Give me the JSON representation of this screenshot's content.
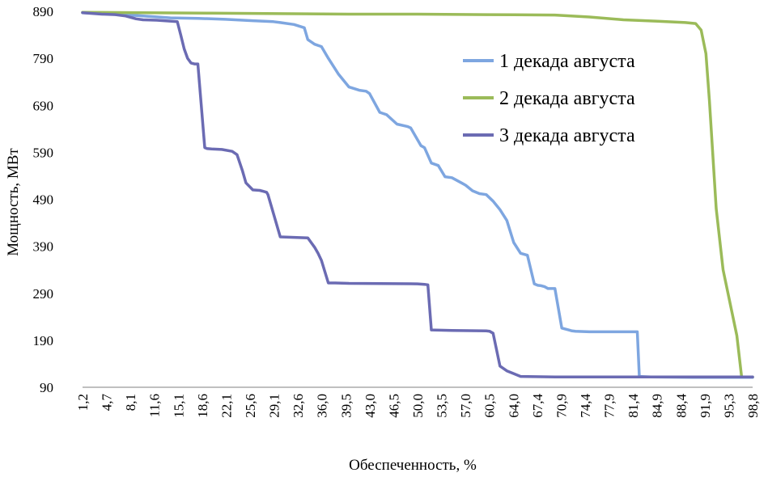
{
  "chart_data": {
    "type": "line",
    "xlabel": "Обеспеченность, %",
    "ylabel": "Мощность, МВт",
    "ylim": [
      90,
      890
    ],
    "yticks": [
      "890",
      "790",
      "690",
      "590",
      "490",
      "390",
      "290",
      "190",
      "90"
    ],
    "x_tick_labels": [
      "1,2",
      "4,7",
      "8,1",
      "11,6",
      "15,1",
      "18,6",
      "22,1",
      "25,6",
      "29,1",
      "32,6",
      "36,0",
      "39,5",
      "43,0",
      "46,5",
      "50,0",
      "53,5",
      "57,0",
      "60,5",
      "64,0",
      "67,4",
      "70,9",
      "74,4",
      "77,9",
      "81,4",
      "84,9",
      "88,4",
      "91,9",
      "95,3",
      "98,8"
    ],
    "xlim": [
      1.2,
      98.8
    ],
    "grid": false,
    "legend_position": "upper-right",
    "series": [
      {
        "name": "1 декада августа",
        "color": "#7ea6e0",
        "x": [
          1.2,
          6,
          10,
          14,
          18,
          22,
          26,
          29,
          30,
          32,
          33.5,
          34,
          35,
          36,
          37,
          38.5,
          40,
          41.5,
          42.5,
          43,
          44.5,
          45.5,
          47,
          48.5,
          49,
          50.5,
          51,
          52,
          53,
          54,
          55,
          56.5,
          57,
          58,
          59,
          60,
          61,
          62,
          63,
          64,
          65,
          66,
          67,
          67.5,
          68,
          68.5,
          69,
          70,
          71,
          72,
          72.5,
          73,
          75,
          77,
          79,
          81,
          82,
          82.3,
          84,
          90,
          98.8
        ],
        "y": [
          887,
          884,
          880,
          876,
          875,
          873,
          870,
          868,
          866,
          862,
          855,
          830,
          820,
          815,
          790,
          756,
          729,
          722,
          720,
          715,
          675,
          670,
          650,
          645,
          642,
          604,
          600,
          567,
          562,
          538,
          536,
          524,
          520,
          508,
          502,
          500,
          486,
          468,
          445,
          398,
          375,
          371,
          310,
          307,
          306,
          304,
          300,
          300,
          216,
          212,
          210,
          209,
          208,
          208,
          208,
          208,
          208,
          113,
          112,
          111,
          111
        ]
      },
      {
        "name": "2 декада августа",
        "color": "#9bbb59",
        "x": [
          1.2,
          10,
          20,
          30,
          40,
          50,
          60,
          70,
          75,
          80,
          85,
          89,
          90.5,
          91.3,
          92,
          92.5,
          93.5,
          94.5,
          95.5,
          96.5,
          97.2,
          98.8
        ],
        "y": [
          888,
          887,
          886,
          885,
          884,
          884,
          883,
          882,
          878,
          872,
          869,
          866,
          864,
          850,
          800,
          700,
          470,
          340,
          270,
          200,
          112,
          112
        ]
      },
      {
        "name": "3 декада августа",
        "color": "#6b6bb3",
        "x": [
          1.2,
          4,
          6,
          7.5,
          9,
          10,
          12,
          15,
          15.5,
          16,
          16.5,
          17,
          17.5,
          18,
          19,
          19.3,
          20,
          21.5,
          23,
          23.7,
          24.5,
          25,
          26,
          27,
          27.5,
          28,
          28.2,
          30,
          32,
          34,
          34.5,
          35,
          35.5,
          36,
          37,
          38,
          40,
          50,
          51,
          51.5,
          52,
          55,
          60,
          60.5,
          61,
          62,
          63,
          65,
          70,
          80,
          98.8
        ],
        "y": [
          887,
          884,
          883,
          880,
          874,
          872,
          871,
          868,
          840,
          810,
          790,
          780,
          778,
          778,
          600,
          598,
          597,
          596,
          592,
          585,
          550,
          525,
          510,
          509,
          507,
          505,
          500,
          410,
          409,
          408,
          398,
          388,
          375,
          360,
          312,
          312,
          311,
          310,
          309,
          308,
          212,
          211,
          210,
          209,
          205,
          135,
          125,
          113,
          112,
          112,
          112
        ]
      }
    ]
  }
}
